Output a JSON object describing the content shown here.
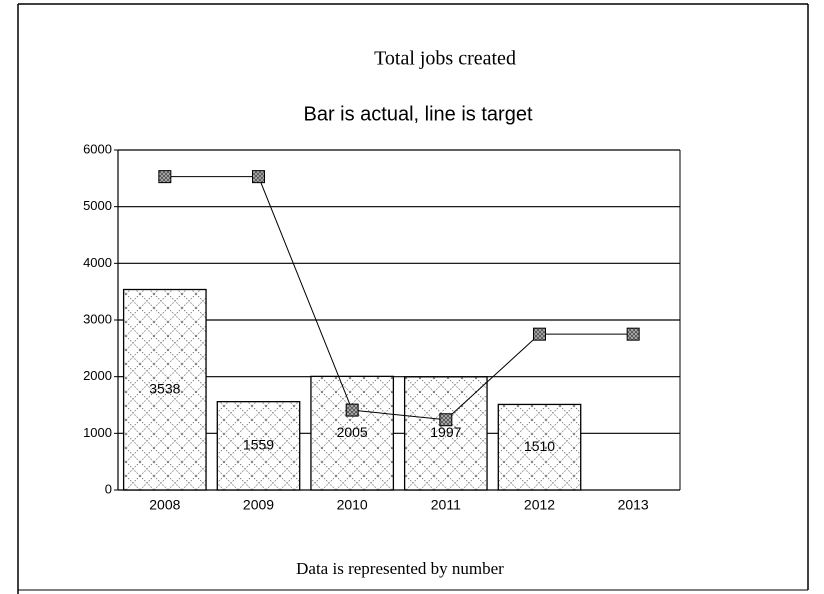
{
  "chart_data": {
    "type": "bar",
    "title": "Total jobs created",
    "subtitle": "Bar is actual, line is target",
    "footnote": "Data is represented by number",
    "categories": [
      "2008",
      "2009",
      "2010",
      "2011",
      "2012",
      "2013"
    ],
    "values": [
      3538,
      1559,
      2005,
      1997,
      1510,
      null
    ],
    "target_values": [
      5530,
      5530,
      1410,
      1240,
      2750,
      2750
    ],
    "color": "#ffffff",
    "line_color": "#000000",
    "ylim": [
      0,
      6000
    ],
    "yticks": [
      0,
      1000,
      2000,
      3000,
      4000,
      5000,
      6000
    ],
    "grid": true
  }
}
